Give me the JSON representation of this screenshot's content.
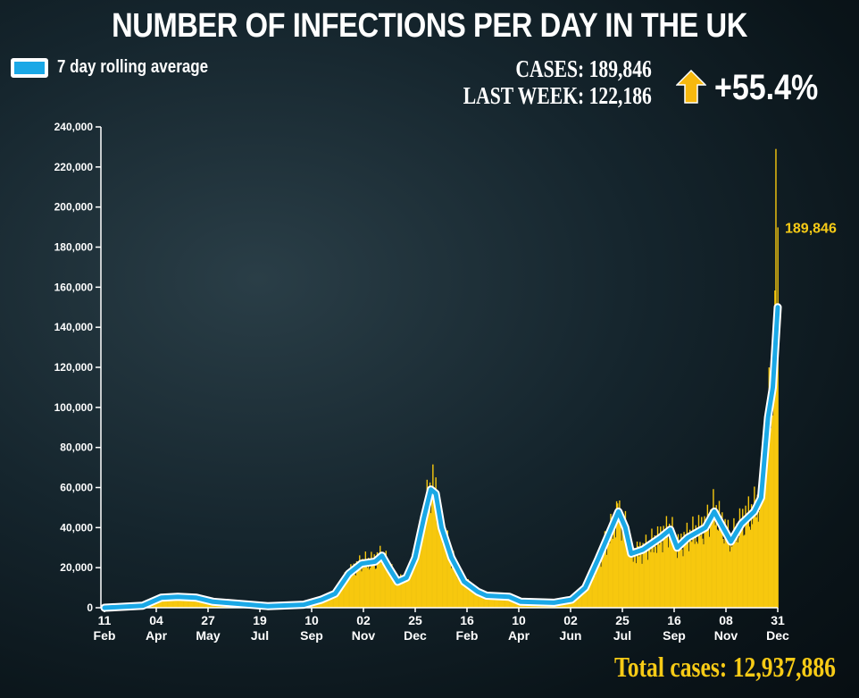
{
  "title": "NUMBER OF INFECTIONS PER DAY IN THE UK",
  "legend": {
    "label": "7 day rolling average",
    "color": "#1aa8e6"
  },
  "stats": {
    "cases": "CASES: 189,846",
    "last_week": "LAST WEEK: 122,186",
    "change": "+55.4%",
    "arrow_icon": "up-arrow-icon"
  },
  "total": "Total cases: 12,937,886",
  "colors": {
    "bars": "#f7c80e",
    "line": "#1aa8e6",
    "line_outline": "#ffffff",
    "accent": "#f7cb16"
  },
  "chart_data": {
    "type": "bar",
    "title": "NUMBER OF INFECTIONS PER DAY IN THE UK",
    "xlabel": "",
    "ylabel": "",
    "ylim": [
      0,
      240000
    ],
    "xlim_days": [
      0,
      689
    ],
    "yticks": [
      "0",
      "20,000",
      "40,000",
      "60,000",
      "80,000",
      "100,000",
      "120,000",
      "140,000",
      "160,000",
      "180,000",
      "200,000",
      "220,000",
      "240,000"
    ],
    "xticks": [
      {
        "day": 0,
        "d": "11",
        "m": "Feb"
      },
      {
        "day": 53,
        "d": "04",
        "m": "Apr"
      },
      {
        "day": 106,
        "d": "27",
        "m": "May"
      },
      {
        "day": 159,
        "d": "19",
        "m": "Jul"
      },
      {
        "day": 212,
        "d": "10",
        "m": "Sep"
      },
      {
        "day": 265,
        "d": "02",
        "m": "Nov"
      },
      {
        "day": 318,
        "d": "25",
        "m": "Dec"
      },
      {
        "day": 371,
        "d": "16",
        "m": "Feb"
      },
      {
        "day": 424,
        "d": "10",
        "m": "Apr"
      },
      {
        "day": 477,
        "d": "02",
        "m": "Jun"
      },
      {
        "day": 530,
        "d": "25",
        "m": "Jul"
      },
      {
        "day": 583,
        "d": "16",
        "m": "Sep"
      },
      {
        "day": 636,
        "d": "08",
        "m": "Nov"
      },
      {
        "day": 689,
        "d": "31",
        "m": "Dec"
      }
    ],
    "rolling_average": [
      [
        0,
        0
      ],
      [
        39,
        1000
      ],
      [
        58,
        5000
      ],
      [
        75,
        5500
      ],
      [
        94,
        5000
      ],
      [
        111,
        3000
      ],
      [
        167,
        800
      ],
      [
        204,
        1500
      ],
      [
        222,
        4000
      ],
      [
        236,
        7000
      ],
      [
        250,
        17000
      ],
      [
        263,
        22000
      ],
      [
        277,
        23000
      ],
      [
        284,
        26000
      ],
      [
        291,
        20000
      ],
      [
        300,
        13000
      ],
      [
        309,
        15000
      ],
      [
        318,
        25000
      ],
      [
        327,
        45000
      ],
      [
        334,
        59000
      ],
      [
        339,
        57000
      ],
      [
        345,
        40000
      ],
      [
        355,
        25000
      ],
      [
        368,
        13000
      ],
      [
        382,
        8000
      ],
      [
        391,
        6000
      ],
      [
        414,
        5500
      ],
      [
        426,
        3000
      ],
      [
        460,
        2500
      ],
      [
        478,
        4000
      ],
      [
        492,
        10000
      ],
      [
        505,
        24000
      ],
      [
        519,
        40000
      ],
      [
        526,
        48000
      ],
      [
        533,
        40000
      ],
      [
        539,
        27000
      ],
      [
        551,
        29000
      ],
      [
        569,
        35000
      ],
      [
        579,
        39000
      ],
      [
        586,
        30000
      ],
      [
        597,
        35000
      ],
      [
        615,
        40000
      ],
      [
        624,
        48000
      ],
      [
        633,
        40000
      ],
      [
        641,
        33000
      ],
      [
        652,
        42000
      ],
      [
        665,
        48000
      ],
      [
        672,
        55000
      ],
      [
        679,
        95000
      ],
      [
        684,
        110000
      ],
      [
        689,
        150000
      ]
    ],
    "daily_peaks": [
      [
        687,
        229000
      ],
      [
        689,
        189846
      ]
    ],
    "annotation": {
      "day": 689,
      "value": 189846,
      "label": "189,846"
    }
  }
}
